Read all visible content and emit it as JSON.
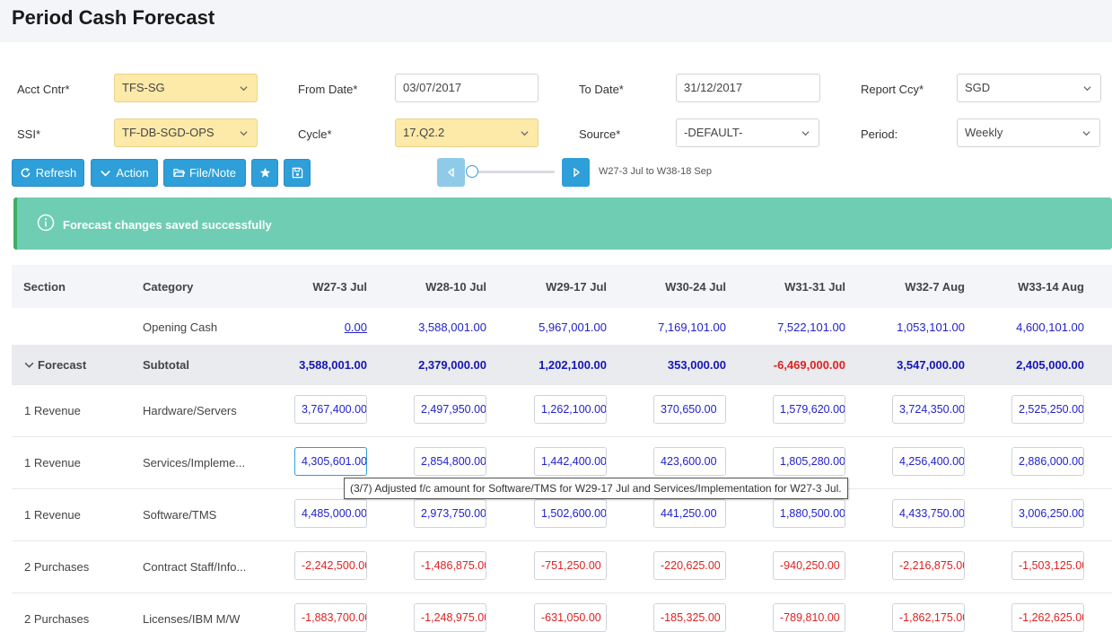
{
  "page": {
    "title": "Period Cash Forecast"
  },
  "filters": {
    "acct_cntr": {
      "label": "Acct Cntr*",
      "value": "TFS-SG"
    },
    "from_date": {
      "label": "From Date*",
      "value": "03/07/2017"
    },
    "to_date": {
      "label": "To Date*",
      "value": "31/12/2017"
    },
    "report_ccy": {
      "label": "Report Ccy*",
      "value": "SGD"
    },
    "ssi": {
      "label": "SSI*",
      "value": "TF-DB-SGD-OPS"
    },
    "cycle": {
      "label": "Cycle*",
      "value": "17.Q2.2"
    },
    "source": {
      "label": "Source*",
      "value": "-DEFAULT-"
    },
    "period": {
      "label": "Period:",
      "value": "Weekly"
    }
  },
  "toolbar": {
    "refresh_label": "Refresh",
    "action_label": "Action",
    "file_note_label": "File/Note",
    "icons": {
      "refresh": "refresh-icon",
      "action": "chevron-down-icon",
      "file": "folder-open-icon",
      "favorite": "star-icon",
      "save": "save-icon"
    }
  },
  "range": {
    "text": "W27-3 Jul to W38-18 Sep",
    "slider_position": 0
  },
  "alert": {
    "text": "Forecast changes saved successfully",
    "icon": "info-icon",
    "color": "#6ecdb3"
  },
  "table": {
    "headers": {
      "section": "Section",
      "category": "Category"
    },
    "weeks": [
      "W27-3 Jul",
      "W28-10 Jul",
      "W29-17 Jul",
      "W30-24 Jul",
      "W31-31 Jul",
      "W32-7 Aug",
      "W33-14 Aug"
    ],
    "opening": {
      "label": "Opening Cash",
      "values": [
        "0.00",
        "3,588,001.00",
        "5,967,001.00",
        "7,169,101.00",
        "7,522,101.00",
        "1,053,101.00",
        "4,600,101.00"
      ]
    },
    "subtotal": {
      "section": "Forecast",
      "label": "Subtotal",
      "values": [
        "3,588,001.00",
        "2,379,000.00",
        "1,202,100.00",
        "353,000.00",
        "-6,469,000.00",
        "3,547,000.00",
        "2,405,000.00"
      ]
    },
    "rows": [
      {
        "section": "1 Revenue",
        "category": "Hardware/Servers",
        "values": [
          "3,767,400.00",
          "2,497,950.00",
          "1,262,100.00",
          "370,650.00",
          "1,579,620.00",
          "3,724,350.00",
          "2,525,250.00"
        ]
      },
      {
        "section": "1 Revenue",
        "category": "Services/Impleme...",
        "values": [
          "4,305,601.00",
          "2,854,800.00",
          "1,442,400.00",
          "423,600.00",
          "1,805,280.00",
          "4,256,400.00",
          "2,886,000.00"
        ]
      },
      {
        "section": "1 Revenue",
        "category": "Software/TMS",
        "values": [
          "4,485,000.00",
          "2,973,750.00",
          "1,502,600.00",
          "441,250.00",
          "1,880,500.00",
          "4,433,750.00",
          "3,006,250.00"
        ]
      },
      {
        "section": "2 Purchases",
        "category": "Contract Staff/Info...",
        "values": [
          "-2,242,500.00",
          "-1,486,875.00",
          "-751,250.00",
          "-220,625.00",
          "-940,250.00",
          "-2,216,875.00",
          "-1,503,125.00"
        ]
      },
      {
        "section": "2 Purchases",
        "category": "Licenses/IBM M/W",
        "values": [
          "-1,883,700.00",
          "-1,248,975.00",
          "-631,050.00",
          "-185,325.00",
          "-789,810.00",
          "-1,862,175.00",
          "-1,262,625.00"
        ]
      }
    ]
  },
  "tooltip": {
    "text": "(3/7) Adjusted f/c amount for Software/TMS for W29-17 Jul and Services/Implementation for W27-3 Jul."
  },
  "colors": {
    "accent": "#2e9fd8",
    "positive": "#2222cc",
    "negative": "#dd2222",
    "highlight": "#fde9a8"
  }
}
